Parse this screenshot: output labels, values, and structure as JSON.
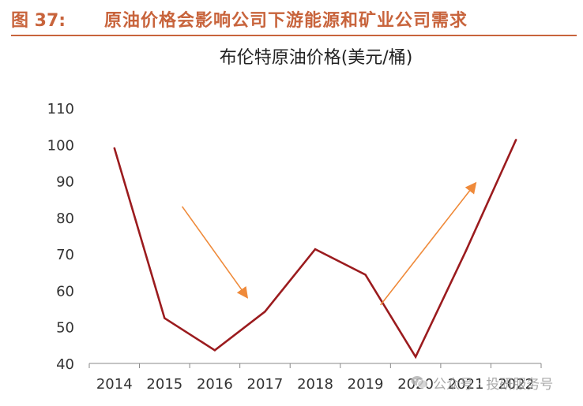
{
  "figure": {
    "label": "图 37:",
    "title": "原油价格会影响公司下游能源和矿业公司需求"
  },
  "watermark": {
    "text": "公众号 · 投研服务号",
    "icon": "wechat-icon"
  },
  "colors": {
    "header": "#c8643c",
    "line": "#9b1b1e",
    "arrow": "#ef8a3a",
    "axis": "#888888"
  },
  "chart_data": {
    "type": "line",
    "title": "布伦特原油价格(美元/桶)",
    "xlabel": "",
    "ylabel": "",
    "x": [
      "2014",
      "2015",
      "2016",
      "2017",
      "2018",
      "2019",
      "2020",
      "2021",
      "2022"
    ],
    "series": [
      {
        "values": [
          99,
          52.4,
          43.6,
          54.2,
          71.3,
          64.3,
          41.8,
          70.8,
          101.3
        ]
      }
    ],
    "ylim": [
      40,
      110
    ],
    "yticks": [
      40,
      50,
      60,
      70,
      80,
      90,
      100,
      110
    ],
    "grid": false,
    "annotations": [
      {
        "type": "arrow",
        "direction": "down",
        "from": [
          "2015.35",
          83
        ],
        "to": [
          "2016.65",
          58
        ]
      },
      {
        "type": "arrow",
        "direction": "up",
        "from": [
          "2019.3",
          56
        ],
        "to": [
          "2021.2",
          89.5
        ]
      }
    ]
  }
}
